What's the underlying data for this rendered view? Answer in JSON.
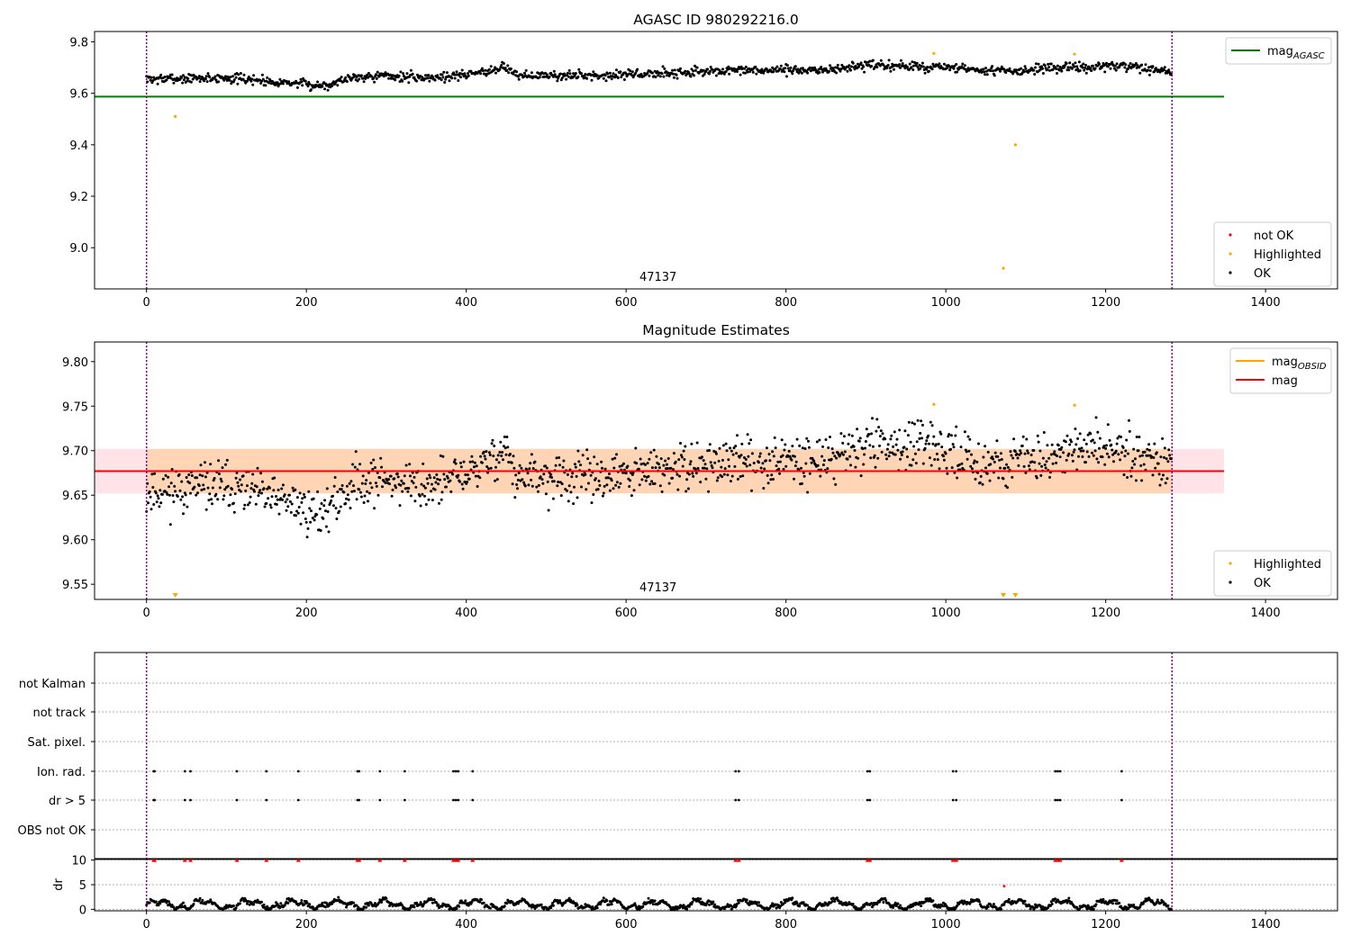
{
  "chart_data": [
    {
      "type": "scatter",
      "title": "AGASC ID 980292216.0",
      "xlabel": "",
      "ylabel": "",
      "xlim": [
        -65,
        1490
      ],
      "ylim": [
        8.84,
        9.84
      ],
      "xticks": [
        0,
        200,
        400,
        600,
        800,
        1000,
        1200,
        1400
      ],
      "yticks": [
        9.0,
        9.2,
        9.4,
        9.6,
        9.8
      ],
      "ytick_decimals": 1,
      "annotation": "47137",
      "annotation_x": 640,
      "vlines": [
        0,
        1283
      ],
      "hlines": [
        {
          "name": "mag_AGASC",
          "y": 9.587,
          "x0": -65,
          "x1": 1348,
          "color": "#008000"
        }
      ],
      "ok_series": {
        "name": "OK",
        "count": 1283,
        "seed": 7,
        "color": "#000000"
      },
      "highlighted": [
        [
          36,
          9.51
        ],
        [
          985,
          9.755
        ],
        [
          1072,
          8.92
        ],
        [
          1087,
          9.4
        ],
        [
          1161,
          9.752
        ]
      ],
      "legend": {
        "upper": [
          {
            "label": "mag",
            "sub": "AGASC",
            "color": "#008000",
            "kind": "line"
          }
        ],
        "lower": [
          {
            "label": "not OK",
            "color": "#ff0000",
            "kind": "dot"
          },
          {
            "label": "Highlighted",
            "color": "#ffa500",
            "kind": "dot"
          },
          {
            "label": "OK",
            "color": "#000000",
            "kind": "dot"
          }
        ]
      }
    },
    {
      "type": "scatter",
      "title": "Magnitude Estimates",
      "xlabel": "",
      "ylabel": "",
      "xlim": [
        -65,
        1490
      ],
      "ylim": [
        9.533,
        9.822
      ],
      "xticks": [
        0,
        200,
        400,
        600,
        800,
        1000,
        1200,
        1400
      ],
      "yticks": [
        9.55,
        9.6,
        9.65,
        9.7,
        9.75,
        9.8
      ],
      "ytick_decimals": 2,
      "annotation": "47137",
      "annotation_x": 640,
      "vlines": [
        0,
        1283
      ],
      "hlines": [
        {
          "name": "mag",
          "y": 9.677,
          "x0": -65,
          "x1": 1348,
          "color": "#ff0000"
        }
      ],
      "bands": [
        {
          "name": "mag-band",
          "y0": 9.652,
          "y1": 9.702,
          "x0": -65,
          "x1": 1348,
          "color": "#ffc0cb",
          "opacity": 0.45
        },
        {
          "name": "mag-obsid-band",
          "y0": 9.652,
          "y1": 9.702,
          "x0": 0,
          "x1": 1283,
          "color": "#ffa500",
          "opacity": 0.22
        }
      ],
      "ok_series": {
        "name": "OK",
        "count": 1283,
        "seed": 11,
        "color": "#000000",
        "scale": 1.55
      },
      "highlighted_points": [
        [
          985,
          9.752
        ],
        [
          1161,
          9.751
        ]
      ],
      "offscale_markers": [
        36,
        1072,
        1087
      ],
      "legend": {
        "upper": [
          {
            "label": "mag",
            "sub": "OBSID",
            "color": "#ffa500",
            "kind": "line"
          },
          {
            "label": "mag",
            "sub": "",
            "color": "#ff0000",
            "kind": "line"
          }
        ],
        "lower": [
          {
            "label": "Highlighted",
            "color": "#ffa500",
            "kind": "dot"
          },
          {
            "label": "OK",
            "color": "#000000",
            "kind": "dot"
          }
        ]
      }
    },
    {
      "type": "scatter",
      "title": "",
      "xlabel": "",
      "ylabel": "",
      "xlim": [
        -65,
        1490
      ],
      "categories": [
        "not Kalman",
        "not track",
        "Sat. pixel.",
        "Ion. rad.",
        "dr > 5",
        "OBS not OK"
      ],
      "flag_x": [
        9,
        10,
        48,
        55,
        113,
        150,
        190,
        264,
        266,
        292,
        323,
        384,
        387,
        390,
        408,
        737,
        741,
        902,
        905,
        1009,
        1013,
        1137,
        1140,
        1143,
        1220
      ],
      "vlines": [
        0,
        1283
      ]
    },
    {
      "type": "scatter",
      "title": "",
      "xlabel": "",
      "ylabel": "dr",
      "xlim": [
        -65,
        1490
      ],
      "ylim": [
        -0.3,
        10.3
      ],
      "yticks": [
        0,
        5,
        10
      ],
      "dr_series": {
        "name": "dr",
        "count": 1283,
        "seed": 23,
        "color": "#000000"
      },
      "capped_markers_y": 10,
      "red_points": [
        [
          1073,
          4.7
        ]
      ],
      "vlines": [
        0,
        1283
      ]
    }
  ]
}
